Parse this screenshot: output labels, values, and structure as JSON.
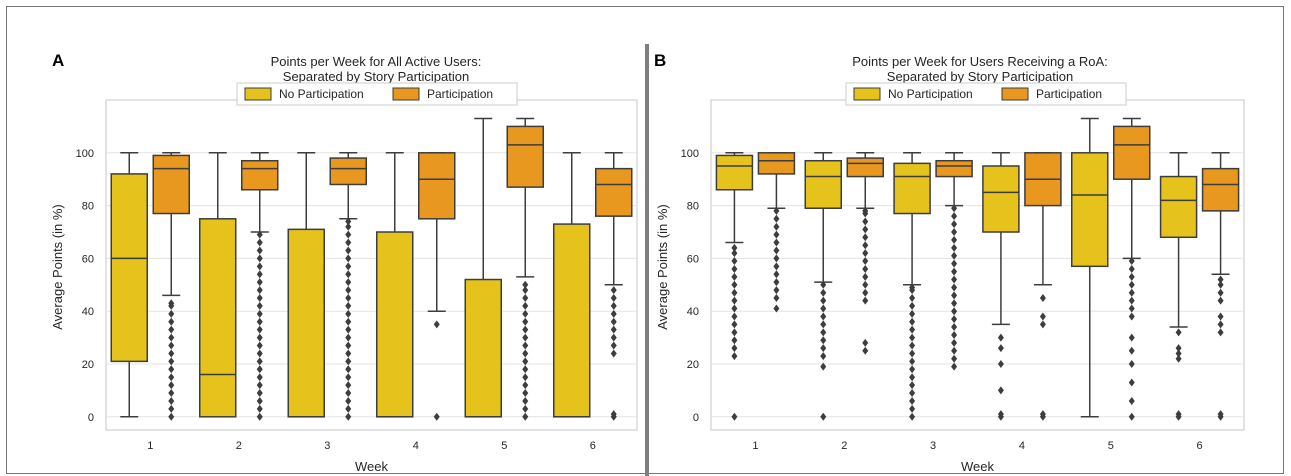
{
  "chart_data": [
    {
      "panel_letter": "A",
      "type": "box",
      "title": [
        "Points per Week for All Active Users:",
        "Separated by Story Participation"
      ],
      "xlabel": "Week",
      "ylabel": "Average Points (in %)",
      "ylim": [
        -5,
        120
      ],
      "yticks": [
        0,
        20,
        40,
        60,
        80,
        100
      ],
      "grid": true,
      "legend_placement": "top-center",
      "categories": [
        "1",
        "2",
        "3",
        "4",
        "5",
        "6"
      ],
      "series": [
        {
          "name": "No Participation",
          "color": "#e5c31c",
          "boxes": [
            {
              "low": 0,
              "q1": 21,
              "median": 60,
              "q3": 92,
              "high": 100,
              "outliers": []
            },
            {
              "low": 0,
              "q1": 0,
              "median": 16,
              "q3": 75,
              "high": 100,
              "outliers": []
            },
            {
              "low": 0,
              "q1": 0,
              "median": 0,
              "q3": 71,
              "high": 100,
              "outliers": []
            },
            {
              "low": 0,
              "q1": 0,
              "median": 0,
              "q3": 70,
              "high": 100,
              "outliers": []
            },
            {
              "low": 0,
              "q1": 0,
              "median": 0,
              "q3": 52,
              "high": 113,
              "outliers": []
            },
            {
              "low": 0,
              "q1": 0,
              "median": 0,
              "q3": 73,
              "high": 100,
              "outliers": []
            }
          ]
        },
        {
          "name": "Participation",
          "color": "#e8981e",
          "boxes": [
            {
              "low": 46,
              "q1": 77,
              "median": 94,
              "q3": 99,
              "high": 100,
              "outliers": [
                0,
                3,
                6,
                9,
                12,
                15,
                18,
                21,
                24,
                27,
                30,
                33,
                36,
                39,
                42,
                43
              ]
            },
            {
              "low": 70,
              "q1": 86,
              "median": 94,
              "q3": 97,
              "high": 100,
              "outliers": [
                0,
                3,
                6,
                9,
                12,
                15,
                18,
                21,
                24,
                27,
                30,
                33,
                36,
                39,
                42,
                45,
                48,
                51,
                54,
                57,
                60,
                63,
                66,
                69
              ]
            },
            {
              "low": 75,
              "q1": 88,
              "median": 94,
              "q3": 98,
              "high": 100,
              "outliers": [
                0,
                3,
                6,
                9,
                12,
                15,
                18,
                21,
                24,
                27,
                30,
                33,
                36,
                39,
                42,
                45,
                48,
                51,
                54,
                57,
                60,
                63,
                66,
                69,
                72,
                74
              ]
            },
            {
              "low": 40,
              "q1": 75,
              "median": 90,
              "q3": 100,
              "high": 100,
              "outliers": [
                0,
                35
              ]
            },
            {
              "low": 53,
              "q1": 87,
              "median": 103,
              "q3": 110,
              "high": 113,
              "outliers": [
                0,
                3,
                6,
                9,
                12,
                15,
                18,
                21,
                24,
                27,
                30,
                33,
                36,
                39,
                42,
                45,
                48,
                50
              ]
            },
            {
              "low": 50,
              "q1": 76,
              "median": 88,
              "q3": 94,
              "high": 100,
              "outliers": [
                0,
                1,
                24,
                27,
                30,
                33,
                36,
                39,
                42,
                45,
                48
              ]
            }
          ]
        }
      ]
    },
    {
      "panel_letter": "B",
      "type": "box",
      "title": [
        "Points per Week for Users Receiving a RoA:",
        "Separated by Story Participation"
      ],
      "xlabel": "Week",
      "ylabel": "Average Points (in %)",
      "ylim": [
        -5,
        120
      ],
      "yticks": [
        0,
        20,
        40,
        60,
        80,
        100
      ],
      "grid": true,
      "legend_placement": "top-center",
      "categories": [
        "1",
        "2",
        "3",
        "4",
        "5",
        "6"
      ],
      "series": [
        {
          "name": "No Participation",
          "color": "#e5c31c",
          "boxes": [
            {
              "low": 66,
              "q1": 86,
              "median": 95,
              "q3": 99,
              "high": 100,
              "outliers": [
                0,
                23,
                26,
                29,
                32,
                35,
                38,
                41,
                44,
                47,
                50,
                53,
                56,
                59,
                62,
                64
              ]
            },
            {
              "low": 51,
              "q1": 79,
              "median": 91,
              "q3": 97,
              "high": 100,
              "outliers": [
                0,
                19,
                23,
                26,
                29,
                32,
                35,
                38,
                41,
                44,
                47,
                50
              ]
            },
            {
              "low": 50,
              "q1": 77,
              "median": 91,
              "q3": 96,
              "high": 100,
              "outliers": [
                0,
                3,
                6,
                9,
                12,
                15,
                18,
                21,
                24,
                27,
                30,
                33,
                36,
                39,
                42,
                45,
                48,
                49
              ]
            },
            {
              "low": 35,
              "q1": 70,
              "median": 85,
              "q3": 95,
              "high": 100,
              "outliers": [
                0,
                1,
                10,
                20,
                26,
                30
              ]
            },
            {
              "low": 0,
              "q1": 57,
              "median": 84,
              "q3": 100,
              "high": 113,
              "outliers": []
            },
            {
              "low": 34,
              "q1": 68,
              "median": 82,
              "q3": 91,
              "high": 100,
              "outliers": [
                0,
                1,
                22,
                24,
                26,
                32
              ]
            }
          ]
        },
        {
          "name": "Participation",
          "color": "#e8981e",
          "boxes": [
            {
              "low": 79,
              "q1": 92,
              "median": 97,
              "q3": 100,
              "high": 100,
              "outliers": [
                41,
                45,
                48,
                51,
                54,
                57,
                60,
                63,
                66,
                69,
                72,
                75,
                78
              ]
            },
            {
              "low": 79,
              "q1": 91,
              "median": 96,
              "q3": 98,
              "high": 100,
              "outliers": [
                25,
                28,
                44,
                47,
                50,
                53,
                56,
                59,
                62,
                65,
                68,
                71,
                74,
                77,
                78
              ]
            },
            {
              "low": 80,
              "q1": 91,
              "median": 95,
              "q3": 97,
              "high": 100,
              "outliers": [
                19,
                22,
                25,
                28,
                31,
                34,
                37,
                40,
                43,
                46,
                49,
                52,
                55,
                58,
                61,
                64,
                67,
                70,
                73,
                76,
                79
              ]
            },
            {
              "low": 50,
              "q1": 80,
              "median": 90,
              "q3": 100,
              "high": 100,
              "outliers": [
                0,
                1,
                35,
                38,
                45
              ]
            },
            {
              "low": 60,
              "q1": 90,
              "median": 103,
              "q3": 110,
              "high": 113,
              "outliers": [
                0,
                6,
                13,
                20,
                25,
                30,
                38,
                41,
                44,
                47,
                50,
                53,
                56,
                59
              ]
            },
            {
              "low": 54,
              "q1": 78,
              "median": 88,
              "q3": 94,
              "high": 100,
              "outliers": [
                0,
                1,
                32,
                35,
                38,
                44,
                47,
                50,
                52
              ]
            }
          ]
        }
      ]
    }
  ]
}
